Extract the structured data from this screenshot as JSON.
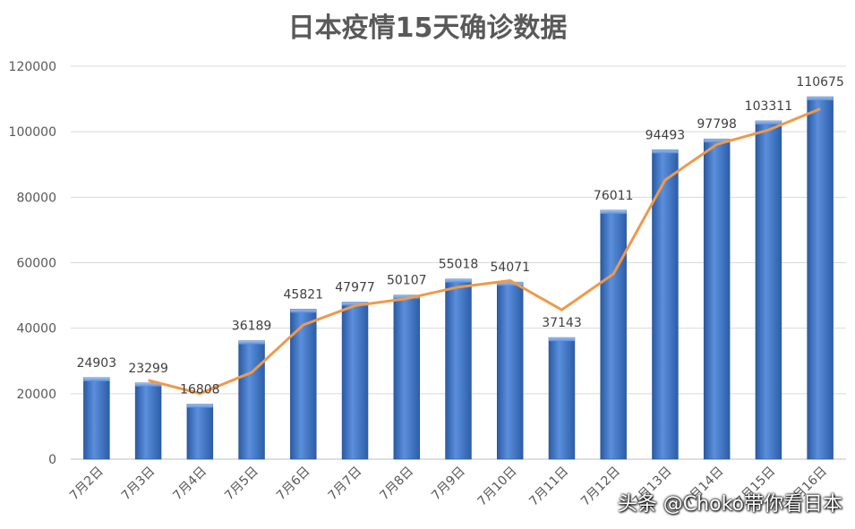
{
  "chart_data": {
    "type": "bar",
    "title": "日本疫情15天确诊数据",
    "categories": [
      "7月2日",
      "7月3日",
      "7月4日",
      "7月5日",
      "7月6日",
      "7月7日",
      "7月8日",
      "7月9日",
      "7月10日",
      "7月11日",
      "7月12日",
      "7月13日",
      "7月14日",
      "7月15日",
      "7月16日"
    ],
    "values": [
      24903,
      23299,
      16808,
      36189,
      45821,
      47977,
      50107,
      55018,
      54071,
      37143,
      76011,
      94493,
      97798,
      103311,
      110675
    ],
    "trendline": [
      null,
      24101,
      20054,
      26499,
      41005,
      46899,
      49042,
      52563,
      54545,
      45607,
      56577,
      85252,
      96146,
      100555,
      106993
    ],
    "value_labels": [
      "24903",
      "23299",
      "16808",
      "36189",
      "45821",
      "47977",
      "50107",
      "55018",
      "54071",
      "37143",
      "76011",
      "94493",
      "97798",
      "103311",
      "110675"
    ],
    "y_ticks": [
      "0",
      "20000",
      "40000",
      "60000",
      "80000",
      "100000",
      "120000"
    ],
    "ylim": [
      0,
      120000
    ],
    "grid": true,
    "bar_color": "#3f74c4",
    "trend_color": "#f0994a"
  },
  "watermark": "头条 @Choko带你看日本"
}
